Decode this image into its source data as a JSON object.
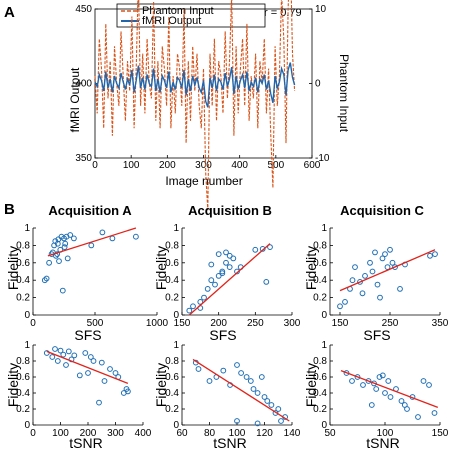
{
  "panel_labels": [
    "A",
    "B"
  ],
  "colors": {
    "phantom": "#d9541a",
    "fmri": "#2166ac",
    "marker": "#1f6fb5",
    "fit": "#e2231a"
  },
  "chart_data": [
    {
      "id": "A",
      "type": "line",
      "xlabel": "Image number",
      "ylabel": "fMRI Output",
      "y2label": "Phantom Input",
      "annotation": "r = 0.79",
      "legend_position": "top-left",
      "xlim": [
        0,
        600
      ],
      "ylim": [
        350,
        450
      ],
      "y2lim": [
        -10,
        10
      ],
      "x_ticks": [
        "0",
        "100",
        "200",
        "300",
        "400",
        "500",
        "600"
      ],
      "y_ticks": [
        "350",
        "400",
        "450"
      ],
      "y2_ticks": [
        "-10",
        "0",
        "10"
      ],
      "series": [
        {
          "name": "Phantom Input",
          "axis": "right",
          "style": "dashed",
          "x": [
            0,
            6,
            12,
            18,
            24,
            30,
            36,
            42,
            48,
            54,
            60,
            66,
            72,
            78,
            84,
            90,
            96,
            102,
            108,
            114,
            120,
            126,
            132,
            138,
            144,
            150,
            156,
            162,
            168,
            174,
            180,
            186,
            192,
            198,
            204,
            210,
            216,
            222,
            228,
            234,
            240,
            246,
            252,
            258,
            264,
            270,
            276,
            282,
            288,
            294,
            300,
            306,
            312,
            318,
            324,
            330,
            336,
            342,
            348,
            354,
            360,
            366,
            372,
            378,
            384,
            390,
            396,
            402,
            408,
            414,
            420,
            426,
            432,
            438,
            444,
            450,
            456,
            462,
            468,
            474,
            480,
            486,
            492,
            498,
            504,
            510,
            516,
            522,
            528,
            534,
            540,
            546,
            552
          ],
          "values": [
            1,
            -4,
            6,
            2,
            -6,
            8,
            -2,
            3,
            -7,
            5,
            0,
            -3,
            7,
            1,
            -5,
            3,
            -1,
            9,
            -6,
            2,
            14,
            -3,
            4,
            -4,
            6,
            0,
            -2,
            11,
            -5,
            3,
            -6,
            5,
            2,
            -3,
            9,
            -6,
            1,
            -4,
            4,
            2,
            -3,
            10,
            -8,
            3,
            -5,
            5,
            -1,
            4,
            -3,
            -6,
            2,
            -12,
            -17,
            4,
            -3,
            6,
            -5,
            3,
            1,
            -4,
            7,
            -2,
            3,
            12,
            -7,
            5,
            -4,
            2,
            6,
            -3,
            8,
            -5,
            1,
            -2,
            4,
            -6,
            3,
            0,
            6,
            -4,
            2,
            -7,
            -14,
            5,
            -3,
            1,
            12,
            6,
            -8,
            10,
            18,
            4,
            -1
          ]
        },
        {
          "name": "fMRI Output",
          "axis": "left",
          "style": "solid",
          "x": [
            0,
            6,
            12,
            18,
            24,
            30,
            36,
            42,
            48,
            54,
            60,
            66,
            72,
            78,
            84,
            90,
            96,
            102,
            108,
            114,
            120,
            126,
            132,
            138,
            144,
            150,
            156,
            162,
            168,
            174,
            180,
            186,
            192,
            198,
            204,
            210,
            216,
            222,
            228,
            234,
            240,
            246,
            252,
            258,
            264,
            270,
            276,
            282,
            288,
            294,
            300,
            306,
            312,
            318,
            324,
            330,
            336,
            342,
            348,
            354,
            360,
            366,
            372,
            378,
            384,
            390,
            396,
            402,
            408,
            414,
            420,
            426,
            432,
            438,
            444,
            450,
            456,
            462,
            468,
            474,
            480,
            486,
            492,
            498,
            504,
            510,
            516,
            522,
            528,
            534,
            540,
            546,
            552
          ],
          "values": [
            401,
            398,
            406,
            402,
            395,
            408,
            397,
            403,
            394,
            405,
            400,
            397,
            407,
            401,
            396,
            403,
            399,
            409,
            394,
            402,
            412,
            397,
            404,
            396,
            406,
            400,
            398,
            410,
            395,
            403,
            394,
            405,
            402,
            397,
            408,
            394,
            401,
            396,
            404,
            402,
            397,
            409,
            392,
            403,
            395,
            405,
            399,
            404,
            397,
            394,
            402,
            388,
            384,
            404,
            397,
            406,
            395,
            403,
            401,
            396,
            407,
            398,
            403,
            411,
            393,
            405,
            396,
            402,
            406,
            397,
            408,
            395,
            401,
            398,
            404,
            394,
            403,
            400,
            406,
            396,
            402,
            393,
            387,
            405,
            397,
            401,
            410,
            406,
            392,
            409,
            414,
            404,
            399
          ]
        }
      ]
    },
    {
      "id": "acqA-sfs",
      "type": "scatter",
      "title": "Acquisition A",
      "xlabel": "SFS",
      "ylabel": "Fidelity",
      "xlim": [
        0,
        1000
      ],
      "ylim": [
        0,
        1
      ],
      "x_ticks": [
        "0",
        "500",
        "1000"
      ],
      "y_ticks": [
        "0",
        "0.2",
        "0.4",
        "0.6",
        "0.8",
        "1"
      ],
      "x": [
        95,
        110,
        130,
        150,
        160,
        170,
        180,
        185,
        195,
        200,
        205,
        210,
        220,
        230,
        240,
        250,
        255,
        260,
        270,
        280,
        300,
        330,
        470,
        560,
        640,
        830
      ],
      "y": [
        0.4,
        0.42,
        0.6,
        0.7,
        0.72,
        0.8,
        0.85,
        0.68,
        0.7,
        0.82,
        0.87,
        0.62,
        0.75,
        0.9,
        0.28,
        0.88,
        0.78,
        0.82,
        0.9,
        0.65,
        0.92,
        0.88,
        0.8,
        0.95,
        0.88,
        0.9
      ],
      "fit": [
        [
          120,
          0.68
        ],
        [
          830,
          1.0
        ]
      ]
    },
    {
      "id": "acqB-sfs",
      "type": "scatter",
      "title": "Acquisition B",
      "xlabel": "SFS",
      "ylabel": "Fidelity",
      "xlim": [
        150,
        300
      ],
      "ylim": [
        0,
        1
      ],
      "x_ticks": [
        "150",
        "200",
        "250",
        "300"
      ],
      "y_ticks": [
        "0",
        "0.2",
        "0.4",
        "0.6",
        "0.8",
        "1"
      ],
      "x": [
        160,
        165,
        175,
        180,
        185,
        190,
        195,
        200,
        205,
        210,
        215,
        220,
        225,
        200,
        215,
        230,
        250,
        260,
        265,
        270,
        190,
        205,
        210,
        175
      ],
      "y": [
        0.05,
        0.1,
        0.15,
        0.2,
        0.3,
        0.4,
        0.35,
        0.45,
        0.5,
        0.6,
        0.55,
        0.65,
        0.5,
        0.7,
        0.68,
        0.55,
        0.75,
        0.76,
        0.38,
        0.78,
        0.58,
        0.48,
        0.72,
        0.08
      ],
      "fit": [
        [
          160,
          0.0
        ],
        [
          270,
          0.82
        ]
      ]
    },
    {
      "id": "acqC-sfs",
      "type": "scatter",
      "title": "Acquisition C",
      "xlabel": "SFS",
      "ylabel": "Fidelity",
      "xlim": [
        130,
        350
      ],
      "ylim": [
        0,
        1
      ],
      "x_ticks": [
        "150",
        "250",
        "350"
      ],
      "y_ticks": [
        "0",
        "0.2",
        "0.4",
        "0.6",
        "0.8",
        "1"
      ],
      "x": [
        150,
        160,
        170,
        180,
        190,
        195,
        200,
        210,
        215,
        220,
        230,
        235,
        240,
        245,
        250,
        255,
        260,
        270,
        280,
        330,
        340,
        175,
        225
      ],
      "y": [
        0.1,
        0.15,
        0.3,
        0.55,
        0.38,
        0.25,
        0.45,
        0.6,
        0.5,
        0.72,
        0.2,
        0.65,
        0.7,
        0.55,
        0.75,
        0.6,
        0.55,
        0.3,
        0.58,
        0.68,
        0.7,
        0.4,
        0.35
      ],
      "fit": [
        [
          150,
          0.28
        ],
        [
          340,
          0.75
        ]
      ]
    },
    {
      "id": "acqA-tsnr",
      "type": "scatter",
      "xlabel": "tSNR",
      "ylabel": "Fidelity",
      "xlim": [
        0,
        400
      ],
      "ylim": [
        0,
        1
      ],
      "x_ticks": [
        "0",
        "100",
        "200",
        "300",
        "400"
      ],
      "y_ticks": [
        "0",
        "0.2",
        "0.4",
        "0.6",
        "0.8",
        "1"
      ],
      "x": [
        50,
        70,
        80,
        90,
        100,
        110,
        120,
        130,
        140,
        150,
        170,
        190,
        200,
        210,
        220,
        240,
        250,
        260,
        280,
        300,
        310,
        330,
        340,
        345
      ],
      "y": [
        0.9,
        0.85,
        0.95,
        0.8,
        0.93,
        0.88,
        0.75,
        0.92,
        0.82,
        0.87,
        0.62,
        0.9,
        0.65,
        0.85,
        0.8,
        0.28,
        0.78,
        0.55,
        0.7,
        0.65,
        0.6,
        0.4,
        0.45,
        0.42
      ],
      "fit": [
        [
          50,
          0.92
        ],
        [
          345,
          0.52
        ]
      ]
    },
    {
      "id": "acqB-tsnr",
      "type": "scatter",
      "xlabel": "tSNR",
      "ylabel": "Fidelity",
      "xlim": [
        60,
        140
      ],
      "ylim": [
        0,
        1
      ],
      "x_ticks": [
        "60",
        "80",
        "100",
        "120",
        "140"
      ],
      "y_ticks": [
        "0",
        "0.2",
        "0.4",
        "0.6",
        "0.8",
        "1"
      ],
      "x": [
        70,
        72,
        80,
        85,
        90,
        95,
        100,
        103,
        107,
        110,
        112,
        115,
        118,
        120,
        122,
        125,
        128,
        130,
        132,
        135,
        100,
        115
      ],
      "y": [
        0.78,
        0.7,
        0.55,
        0.6,
        0.68,
        0.5,
        0.75,
        0.65,
        0.6,
        0.55,
        0.45,
        0.4,
        0.6,
        0.35,
        0.3,
        0.25,
        0.15,
        0.2,
        0.05,
        0.1,
        0.05,
        0.02
      ],
      "fit": [
        [
          68,
          0.82
        ],
        [
          138,
          0.05
        ]
      ]
    },
    {
      "id": "acqC-tsnr",
      "type": "scatter",
      "xlabel": "tSNR",
      "ylabel": "Fidelity",
      "xlim": [
        50,
        150
      ],
      "ylim": [
        0,
        1
      ],
      "x_ticks": [
        "50",
        "100",
        "150"
      ],
      "y_ticks": [
        "0",
        "0.2",
        "0.4",
        "0.6",
        "0.8",
        "1"
      ],
      "x": [
        65,
        70,
        75,
        80,
        85,
        90,
        92,
        95,
        100,
        103,
        105,
        110,
        115,
        118,
        120,
        125,
        130,
        135,
        140,
        145,
        88,
        98
      ],
      "y": [
        0.65,
        0.55,
        0.6,
        0.5,
        0.55,
        0.52,
        0.45,
        0.6,
        0.4,
        0.55,
        0.35,
        0.45,
        0.3,
        0.25,
        0.2,
        0.35,
        0.1,
        0.55,
        0.5,
        0.15,
        0.25,
        0.62
      ],
      "fit": [
        [
          60,
          0.68
        ],
        [
          148,
          0.22
        ]
      ]
    }
  ]
}
